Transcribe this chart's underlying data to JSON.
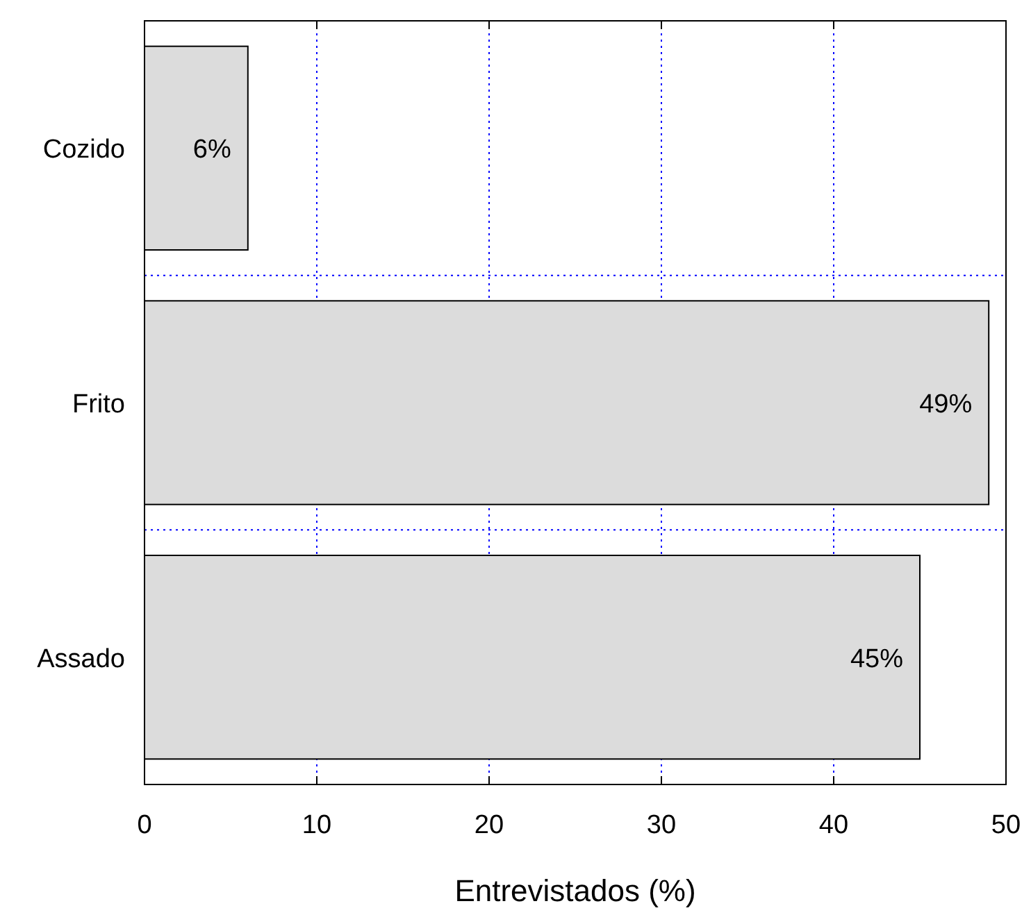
{
  "chart_data": {
    "type": "bar",
    "orientation": "horizontal",
    "xlabel": "Entrevistados (%)",
    "categories": [
      "Cozido",
      "Frito",
      "Assado"
    ],
    "values": [
      6,
      49,
      45
    ],
    "value_labels": [
      "6%",
      "49%",
      "45%"
    ],
    "color": "#dcdcdc",
    "xlim": [
      0,
      50
    ],
    "xticks": [
      0,
      10,
      20,
      30,
      40,
      50
    ],
    "grid": true
  }
}
